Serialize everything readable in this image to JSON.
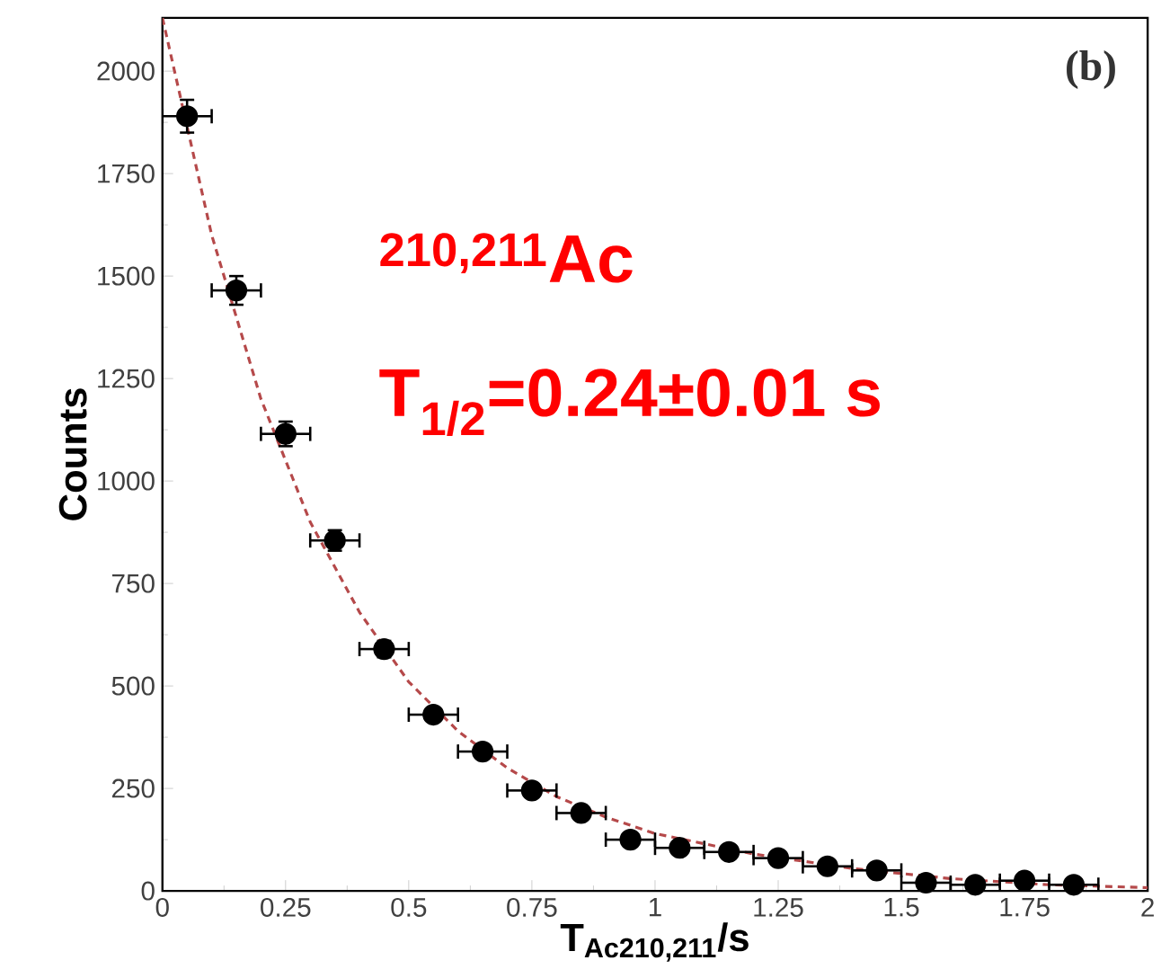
{
  "chart_data": {
    "type": "scatter",
    "xlabel": "T$_{Ac210,211}$/s",
    "ylabel": "Counts",
    "annotations": [
      "(b)",
      "$^{210,211}$Ac",
      "T$_{1/2}$=0.24±0.01 s"
    ],
    "xlim": [
      0,
      2
    ],
    "ylim": [
      0,
      2130
    ],
    "xticks": [
      0,
      0.25,
      0.5,
      0.75,
      1,
      1.25,
      1.5,
      1.75,
      2
    ],
    "yticks": [
      0,
      250,
      500,
      750,
      1000,
      1250,
      1500,
      1750,
      2000
    ],
    "grid": false,
    "series": [
      {
        "color": "#000000",
        "marker": "circle",
        "x": [
          0.05,
          0.15,
          0.25,
          0.35,
          0.45,
          0.55,
          0.65,
          0.75,
          0.85,
          0.95,
          1.05,
          1.15,
          1.25,
          1.35,
          1.45,
          1.55,
          1.65,
          1.75,
          1.85
        ],
        "values": [
          1890,
          1465,
          1115,
          855,
          590,
          430,
          340,
          245,
          190,
          125,
          105,
          95,
          80,
          60,
          50,
          20,
          15,
          25,
          15
        ],
        "errors": [
          40,
          35,
          30,
          25,
          20,
          15,
          null,
          null,
          null,
          null,
          null,
          null,
          null,
          null,
          null,
          null,
          null,
          null,
          null
        ],
        "xerrors": [
          0.05,
          0.05,
          0.05,
          0.05,
          0.05,
          0.05,
          0.05,
          0.05,
          0.05,
          0.05,
          0.05,
          0.05,
          0.05,
          0.05,
          0.05,
          0.05,
          0.05,
          0.05,
          0.05
        ]
      },
      {
        "type": "line",
        "color": "#b5494a",
        "line_style": "dashed",
        "marker": "none",
        "x": [
          0,
          0.1,
          0.2,
          0.3,
          0.4,
          0.5,
          0.6,
          0.7,
          0.8,
          0.9,
          1.0,
          1.2,
          1.4,
          1.6,
          1.8,
          2.0
        ],
        "values": [
          2130,
          1600,
          1200,
          900,
          680,
          510,
          390,
          300,
          230,
          180,
          140,
          90,
          55,
          30,
          15,
          8
        ]
      }
    ]
  }
}
